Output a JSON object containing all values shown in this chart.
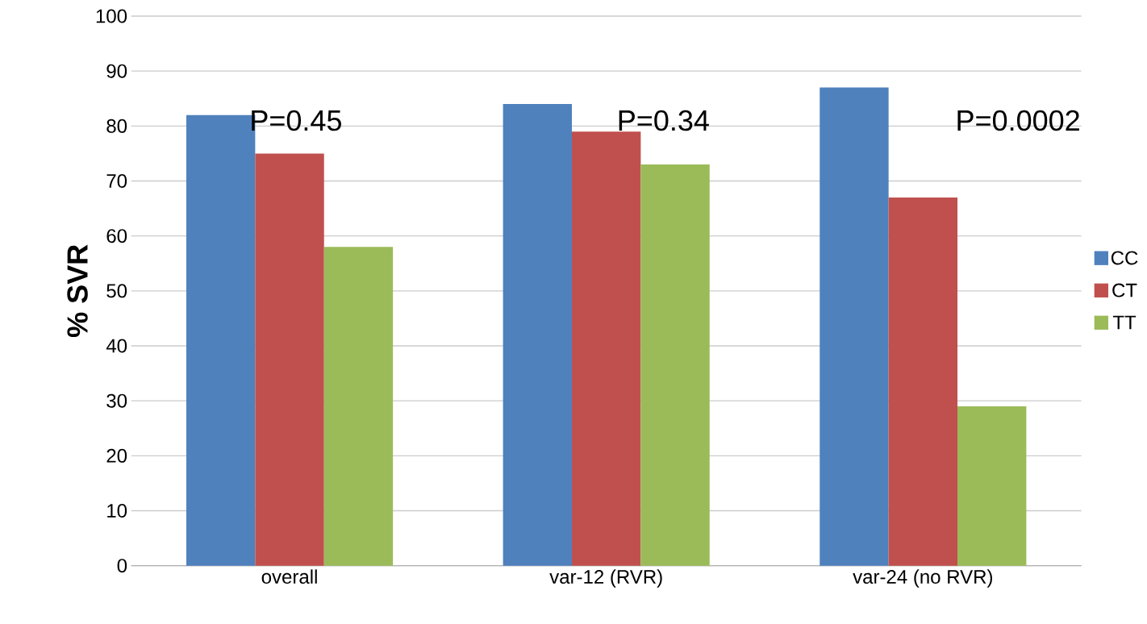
{
  "chart_data": {
    "type": "bar",
    "ylabel": "% SVR",
    "categories": [
      "overall",
      "var-12 (RVR)",
      "var-24 (no RVR)"
    ],
    "series": [
      {
        "name": "CC",
        "color": "#4f81bd",
        "values": [
          82,
          84,
          87
        ]
      },
      {
        "name": "CT",
        "color": "#c0504d",
        "values": [
          75,
          79,
          67
        ]
      },
      {
        "name": "TT",
        "color": "#9bbb59",
        "values": [
          58,
          73,
          29
        ]
      }
    ],
    "annotations": [
      "P=0.45",
      "P=0.34",
      "P=0.0002"
    ],
    "ylim": [
      0,
      100
    ],
    "yticks": [
      0,
      10,
      20,
      30,
      40,
      50,
      60,
      70,
      80,
      90,
      100
    ],
    "grid": "y",
    "legend": "right"
  }
}
